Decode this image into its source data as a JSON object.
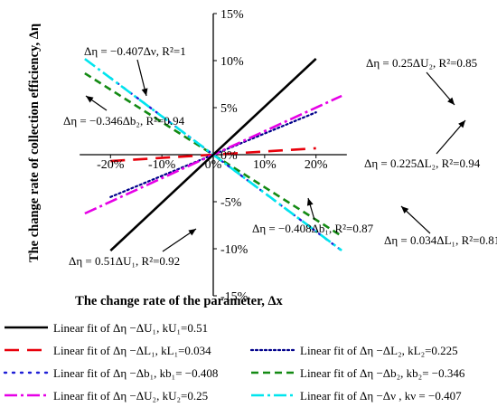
{
  "chart_data": {
    "type": "line",
    "xlabel": "The  change rate of the parameter, Δx",
    "ylabel": "The change rate of collection efficiency, Δη",
    "xlim": [
      -0.26,
      0.26
    ],
    "ylim": [
      -0.15,
      0.15
    ],
    "x_ticks": [
      -0.2,
      -0.1,
      0.0,
      0.1,
      0.2
    ],
    "x_tick_labels": [
      "-20%",
      "-10%",
      "0%",
      "10%",
      "20%"
    ],
    "y_ticks": [
      -0.15,
      -0.1,
      -0.05,
      0.0,
      0.05,
      0.1,
      0.15
    ],
    "y_tick_labels": [
      "-15%",
      "-10%",
      "-5%",
      "0%",
      "5%",
      "10%",
      "15%"
    ],
    "series": [
      {
        "key": "U1",
        "x": [
          -0.2,
          0.2
        ],
        "y": [
          -0.102,
          0.102
        ],
        "color": "#000000",
        "dash": "solid",
        "width": 2.6,
        "legend": "Linear fit of Δη −ΔU₁, kU₁=0.51",
        "annotation": "Δη = 0.51ΔU₁, R²=0.92"
      },
      {
        "key": "L1",
        "x": [
          -0.2,
          0.2
        ],
        "y": [
          -0.0068,
          0.0068
        ],
        "color": "#e8000b",
        "dash": "long",
        "width": 2.6,
        "legend": "Linear fit of Δη −ΔL₁, kL₁=0.034",
        "annotation": "Δη = 0.034ΔL₁, R²=0.81"
      },
      {
        "key": "L2",
        "x": [
          -0.2,
          0.2
        ],
        "y": [
          -0.045,
          0.045
        ],
        "color": "#00008b",
        "dash": "dot",
        "width": 2.2,
        "legend": "Linear fit of Δη −ΔL₂, kL₂=0.225",
        "annotation": "Δη = 0.225ΔL₂, R²=0.94"
      },
      {
        "key": "b1",
        "x": [
          -0.2,
          0.25
        ],
        "y": [
          0.0816,
          -0.102
        ],
        "color": "#1f1fd6",
        "dash": "sparse-dot",
        "width": 2.4,
        "legend": "Linear fit of Δη −Δb₁, kb₁= −0.408",
        "annotation": "Δη = −0.408Δb₁, R²=0.87"
      },
      {
        "key": "b2",
        "x": [
          -0.25,
          0.25
        ],
        "y": [
          0.0865,
          -0.0865
        ],
        "color": "#138a13",
        "dash": "dash",
        "width": 2.6,
        "legend": "Linear fit of Δη −Δb₂, kb₂= −0.346",
        "annotation": "Δη = −0.346Δb₂, R²=0.94"
      },
      {
        "key": "U2",
        "x": [
          -0.25,
          0.25
        ],
        "y": [
          -0.0625,
          0.0625
        ],
        "color": "#e600e6",
        "dash": "dashdot",
        "width": 2.6,
        "legend": "Linear fit of Δη −ΔU₂, kU₂=0.25",
        "annotation": "Δη = 0.25ΔU₂, R²=0.85"
      },
      {
        "key": "v",
        "x": [
          -0.25,
          0.25
        ],
        "y": [
          0.1018,
          -0.1018
        ],
        "color": "#00e5ee",
        "dash": "dashdot",
        "width": 2.6,
        "legend": "Linear fit of Δη −Δν , kν = −0.407",
        "annotation": "Δη = −0.407Δν, R²=1"
      }
    ],
    "legend_position": "bottom"
  }
}
